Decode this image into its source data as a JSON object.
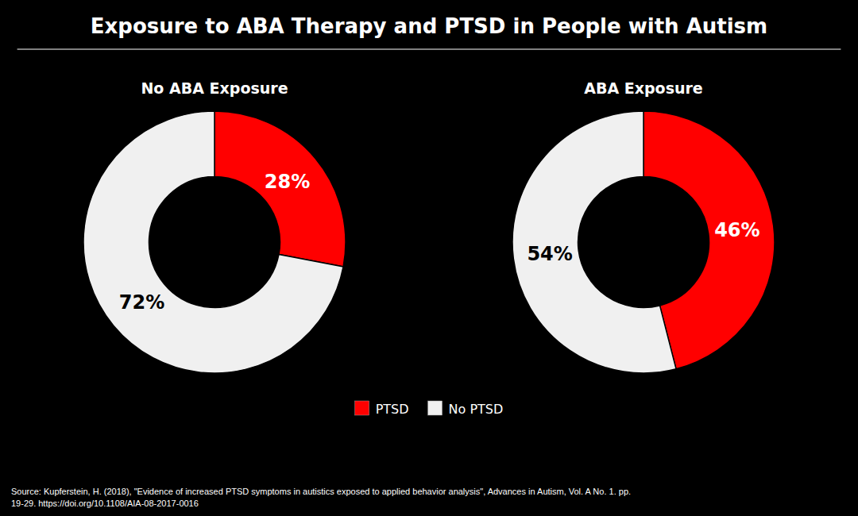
{
  "title": "Exposure to ABA Therapy and PTSD in People with Autism",
  "annotations": [
    "Source: Kupferstein, H. (2018), \"Evidence of increased PTSD symptoms in autistics exposed to applied behavior analysis\", Advances in Autism, Vol. A No. 1. pp.\n19-29. https://doi.org/10.1108/AIA-08-2017-0016"
  ],
  "chart_data": [
    {
      "type": "pie",
      "subtitle": "No ABA Exposure",
      "categories": [
        "PTSD",
        "No PTSD"
      ],
      "values": [
        28,
        72
      ],
      "value_labels": [
        "28%",
        "72%"
      ],
      "colors": [
        "#ff0000",
        "#f0f0f0"
      ],
      "data_labels": true,
      "legend": "bottom"
    },
    {
      "type": "pie",
      "subtitle": "ABA Exposure",
      "categories": [
        "PTSD",
        "No PTSD"
      ],
      "values": [
        46,
        54
      ],
      "value_labels": [
        "46%",
        "54%"
      ],
      "colors": [
        "#ff0000",
        "#f0f0f0"
      ],
      "data_labels": true,
      "legend": "bottom"
    }
  ]
}
